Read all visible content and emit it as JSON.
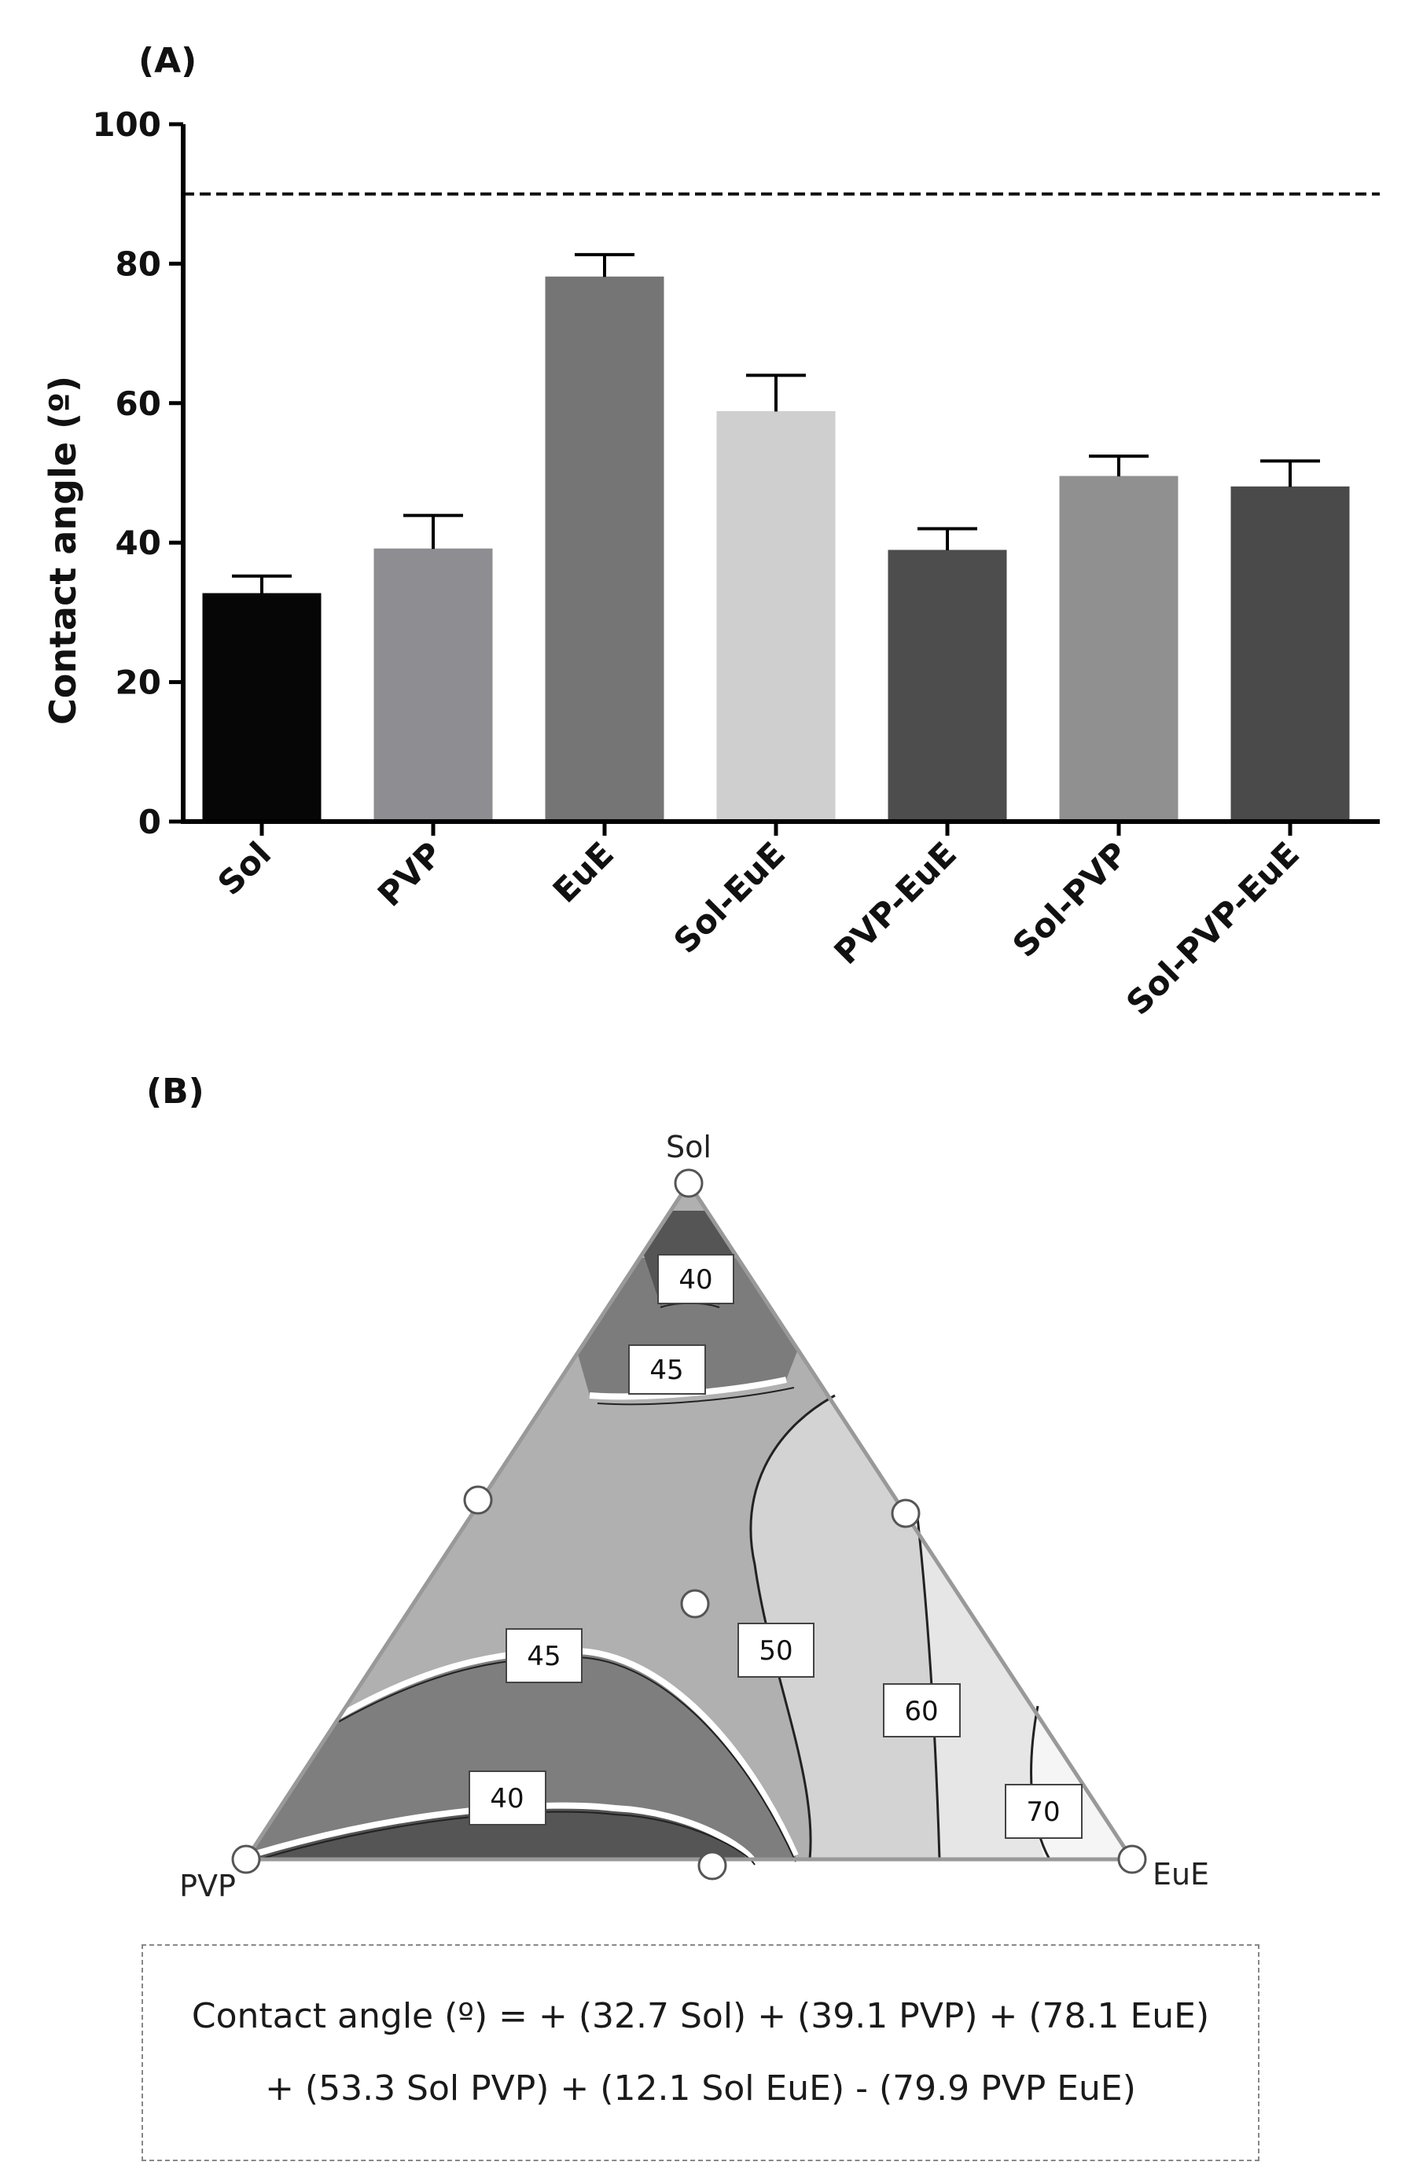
{
  "chart_data": [
    {
      "type": "bar",
      "panel_label": "(A)",
      "categories": [
        "Sol",
        "PVP",
        "EuE",
        "Sol-EuE",
        "PVP-EuE",
        "Sol-PVP",
        "Sol-PVP-EuE"
      ],
      "values": [
        32.7,
        39.1,
        78.1,
        58.8,
        38.9,
        49.5,
        48.0
      ],
      "errors": [
        2.5,
        4.8,
        3.2,
        5.2,
        3.1,
        2.9,
        3.7
      ],
      "bar_colors": [
        "#060606",
        "#8e8d92",
        "#757575",
        "#cfcfcf",
        "#4d4d4d",
        "#909090",
        "#4a4a4a"
      ],
      "ylabel": "Contact angle (º)",
      "xlabel": "",
      "ylim": [
        0,
        100
      ],
      "yticks": [
        0,
        20,
        40,
        60,
        80,
        100
      ],
      "reference_line": 90,
      "grid": false
    },
    {
      "type": "ternary-contour",
      "panel_label": "(B)",
      "vertices": {
        "top": "Sol",
        "left": "PVP",
        "right": "EuE"
      },
      "contour_levels": [
        "40",
        "45",
        "45",
        "40",
        "50",
        "60",
        "70"
      ],
      "design_points": 7
    }
  ],
  "equation": {
    "line1": "Contact angle (º) = + (32.7  Sol) + (39.1 PVP) + (78.1  EuE)",
    "line2": "+ (53.3 Sol PVP) + (12.1 Sol EuE)  - (79.9  PVP EuE)"
  }
}
